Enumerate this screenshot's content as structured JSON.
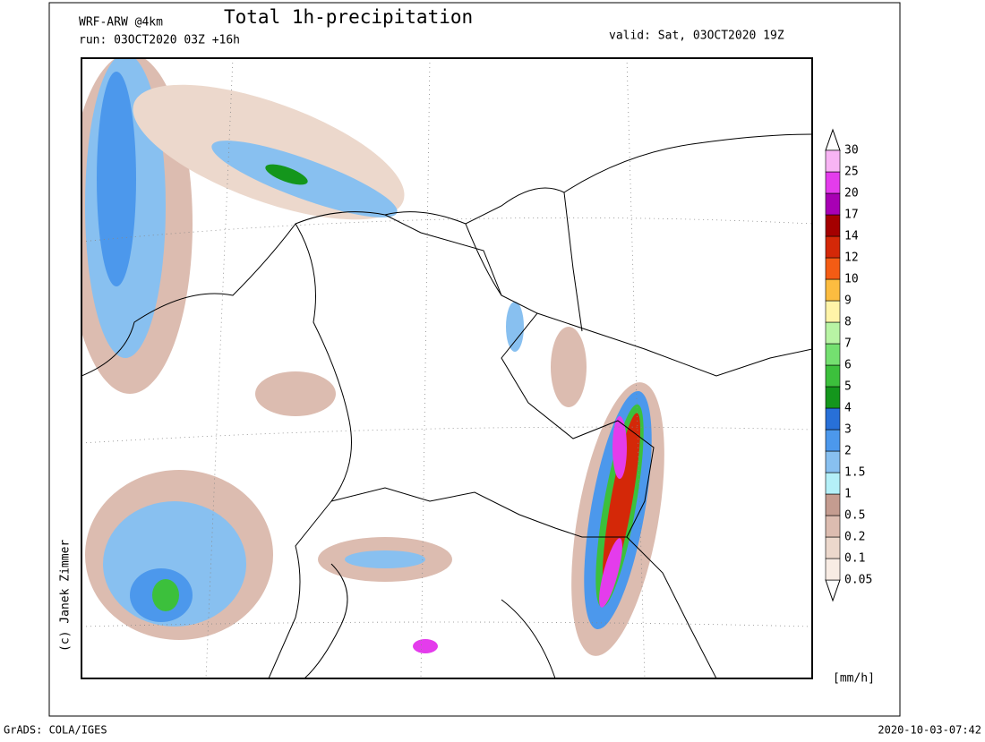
{
  "header": {
    "model": "WRF-ARW @4km",
    "title": "Total 1h-precipitation",
    "run": "run: 03OCT2020 03Z +16h",
    "valid": "valid: Sat, 03OCT2020 19Z"
  },
  "credit": "(c) Janek Zimmer",
  "legend": {
    "unit": "[mm/h]",
    "levels": [
      0.05,
      0.1,
      0.2,
      0.5,
      1,
      1.5,
      2,
      3,
      4,
      5,
      6,
      7,
      8,
      9,
      10,
      12,
      14,
      17,
      20,
      25,
      30
    ],
    "colors": [
      "#f8ece4",
      "#ecd8cc",
      "#dcbcb0",
      "#c49c90",
      "#b4f0f8",
      "#88c0f0",
      "#4c98ec",
      "#2870d8",
      "#14961c",
      "#3cc03c",
      "#74e070",
      "#b8f4a4",
      "#fff4a8",
      "#fcbc40",
      "#f45c14",
      "#d42808",
      "#a40000",
      "#a800b4",
      "#e43cec",
      "#f8b4f4"
    ]
  },
  "footer": {
    "left": "GrADS: COLA/IGES",
    "right": "2020-10-03-07:42"
  }
}
